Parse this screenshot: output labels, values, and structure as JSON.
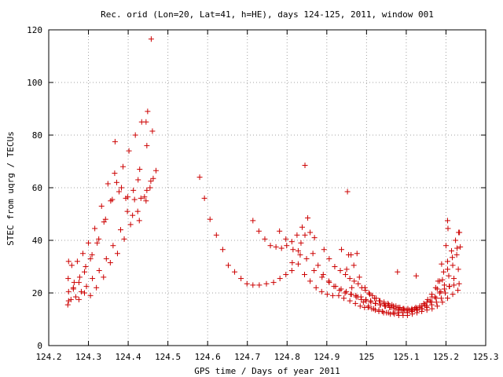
{
  "chart_data": {
    "type": "scatter",
    "title": "Rec. orid (Lon=20, Lat=41, h=HE), days 124-125, 2011, window 001",
    "xlabel": "GPS time / Days of year 2011",
    "ylabel": "STEC from uqrg / TECUs",
    "xlim": [
      124.2,
      125.3
    ],
    "ylim": [
      0,
      120
    ],
    "xticks": [
      "124.2",
      "124.3",
      "124.4",
      "124.5",
      "124.6",
      "124.7",
      "124.8",
      "124.9",
      "125",
      "125.1",
      "125.2",
      "125.3"
    ],
    "xtick_values": [
      124.2,
      124.3,
      124.4,
      124.5,
      124.6,
      124.7,
      124.8,
      124.9,
      125.0,
      125.1,
      125.2,
      125.3
    ],
    "yticks": [
      "0",
      "20",
      "40",
      "60",
      "80",
      "100",
      "120"
    ],
    "ytick_values": [
      0,
      20,
      40,
      60,
      80,
      100,
      120
    ],
    "grid": true,
    "marker": "+",
    "colors": {
      "points": "#cc0000",
      "grid": "#a0a0a0",
      "axis": "#000000"
    },
    "series": [
      {
        "x": [
          124.248,
          124.256,
          124.268,
          124.282,
          124.295,
          124.31,
          124.327,
          124.345,
          124.362,
          124.381,
          124.398,
          124.413,
          124.429,
          124.447,
          124.461,
          124.25,
          124.262,
          124.276,
          124.29,
          124.305,
          124.322,
          124.339,
          124.356,
          124.371,
          124.387,
          124.402,
          124.418,
          124.434,
          124.449,
          124.249,
          124.258,
          124.272,
          124.286,
          124.3,
          124.316,
          124.333,
          124.349,
          124.366,
          124.383,
          124.399,
          124.416,
          124.432,
          124.447,
          124.463,
          124.47,
          124.25,
          124.264,
          124.278,
          124.293,
          124.309,
          124.326,
          124.343,
          124.36,
          124.377,
          124.394,
          124.411,
          124.428,
          124.445,
          124.25,
          124.262,
          124.276,
          124.29,
          124.305,
          124.32,
          124.338,
          124.355,
          124.373,
          124.39,
          124.406,
          124.424,
          124.441,
          124.457,
          124.367,
          124.425,
          124.445,
          124.455,
          124.458,
          124.58,
          124.592,
          124.606,
          124.622,
          124.638,
          124.652,
          124.668,
          124.684,
          124.699,
          124.714,
          124.73,
          124.748,
          124.766,
          124.782,
          124.797,
          124.812,
          124.828,
          124.844,
          124.858,
          124.873,
          124.887,
          124.901,
          124.915,
          124.93,
          124.943,
          124.958,
          124.972,
          124.984,
          124.995,
          125.004,
          125.013,
          125.022,
          125.031,
          125.04,
          125.05,
          125.06,
          125.07,
          125.081,
          125.092,
          125.103,
          125.115,
          125.127,
          125.139,
          125.152,
          125.165,
          125.178,
          125.191,
          125.204,
          125.217,
          125.23,
          124.714,
          124.729,
          124.744,
          124.758,
          124.772,
          124.786,
          124.799,
          124.812,
          124.825,
          124.838,
          124.852,
          124.865,
          124.878,
          124.891,
          124.905,
          124.918,
          124.932,
          124.946,
          124.96,
          124.973,
          124.986,
          124.998,
          125.01,
          125.022,
          125.034,
          125.046,
          125.058,
          125.07,
          125.082,
          125.095,
          125.108,
          125.121,
          125.134,
          125.147,
          125.16,
          125.172,
          125.184,
          125.196,
          125.208,
          125.22,
          125.233,
          124.781,
          124.797,
          124.815,
          124.833,
          124.849,
          124.868,
          124.888,
          124.906,
          124.922,
          124.936,
          124.949,
          124.962,
          124.974,
          124.987,
          124.999,
          125.011,
          125.023,
          125.035,
          125.048,
          125.061,
          125.074,
          125.087,
          125.1,
          125.113,
          125.126,
          125.139,
          125.152,
          125.165,
          125.178,
          125.191,
          125.204,
          125.216,
          125.228,
          124.813,
          124.828,
          124.835,
          124.845,
          124.858,
          124.869,
          124.893,
          124.906,
          124.92,
          124.934,
          124.947,
          124.958,
          124.969,
          124.979,
          124.988,
          124.997,
          125.006,
          125.015,
          125.024,
          125.034,
          125.044,
          125.054,
          125.064,
          125.074,
          125.084,
          125.094,
          125.104,
          125.114,
          125.124,
          125.134,
          125.144,
          125.154,
          125.164,
          125.174,
          125.184,
          125.194,
          125.204,
          125.214,
          125.224,
          125.234,
          124.955,
          124.968,
          124.982,
          124.996,
          125.008,
          125.02,
          125.032,
          125.044,
          125.056,
          125.068,
          125.08,
          125.092,
          125.104,
          125.116,
          125.128,
          125.14,
          125.152,
          125.164,
          125.176,
          125.188,
          125.198,
          125.209,
          125.22,
          125.231,
          124.937,
          124.95,
          124.963,
          124.978,
          124.992,
          125.005,
          125.018,
          125.031,
          125.043,
          125.055,
          125.067,
          125.079,
          125.091,
          125.103,
          125.115,
          125.127,
          125.139,
          125.151,
          125.163,
          125.175,
          125.187,
          125.196,
          125.207,
          125.217,
          125.227,
          125.236,
          124.845,
          124.952,
          124.961,
          124.976,
          125.078,
          125.125,
          125.18,
          125.189,
          125.2,
          125.205,
          125.204,
          125.232
        ],
        "y": [
          15.5,
          17.5,
          18.5,
          20.5,
          22.5,
          25.5,
          28.5,
          33.0,
          38.0,
          44.0,
          51.0,
          59.0,
          67.0,
          76.0,
          81.5,
          17.0,
          21.5,
          24.0,
          28.0,
          33.0,
          39.0,
          47.0,
          55.0,
          62.0,
          68.0,
          74.0,
          80.0,
          85.0,
          89.0,
          25.5,
          30.5,
          32.0,
          35.0,
          39.0,
          44.5,
          53.0,
          61.5,
          65.5,
          60.0,
          56.5,
          55.5,
          56.0,
          59.0,
          63.5,
          66.5,
          20.5,
          24.0,
          26.0,
          30.0,
          34.5,
          40.5,
          48.0,
          55.5,
          58.5,
          56.0,
          49.5,
          47.5,
          55.0,
          32.0,
          22.0,
          17.5,
          20.0,
          19.0,
          22.0,
          26.0,
          31.5,
          35.0,
          40.5,
          46.0,
          51.0,
          56.5,
          62.5,
          77.5,
          63.0,
          85.0,
          60.0,
          116.5,
          64.0,
          56.0,
          48.0,
          42.0,
          36.5,
          30.5,
          28.0,
          25.5,
          23.5,
          23.0,
          23.0,
          23.5,
          24.0,
          25.5,
          27.0,
          28.5,
          31.0,
          27.0,
          24.5,
          22.0,
          20.5,
          19.5,
          19.0,
          19.0,
          18.0,
          17.0,
          16.0,
          15.0,
          14.5,
          14.5,
          14.0,
          13.5,
          13.5,
          13.0,
          12.5,
          12.0,
          12.0,
          11.5,
          11.5,
          11.5,
          12.0,
          12.5,
          13.0,
          13.5,
          14.0,
          15.0,
          16.5,
          18.0,
          19.5,
          21.0,
          47.5,
          43.5,
          40.5,
          38.0,
          37.5,
          37.0,
          38.0,
          39.5,
          42.0,
          45.0,
          48.5,
          35.0,
          30.5,
          27.0,
          24.5,
          22.5,
          21.0,
          20.0,
          19.5,
          19.0,
          18.5,
          17.5,
          17.0,
          16.0,
          15.5,
          15.0,
          14.5,
          14.0,
          13.5,
          13.5,
          13.5,
          14.0,
          14.5,
          15.5,
          17.0,
          18.5,
          20.0,
          21.5,
          22.5,
          23.0,
          23.5,
          43.5,
          40.5,
          36.5,
          34.5,
          33.0,
          28.5,
          26.0,
          24.0,
          22.5,
          21.5,
          20.5,
          19.5,
          18.5,
          17.5,
          17.0,
          16.5,
          16.0,
          15.5,
          15.0,
          14.5,
          14.0,
          13.5,
          13.5,
          13.5,
          14.0,
          15.0,
          16.5,
          18.5,
          21.5,
          25.0,
          29.0,
          33.5,
          37.0,
          31.5,
          36.0,
          39.0,
          42.0,
          43.0,
          41.0,
          36.5,
          33.0,
          30.0,
          28.5,
          27.0,
          25.5,
          24.5,
          23.5,
          22.0,
          21.0,
          20.0,
          19.0,
          18.0,
          17.0,
          16.5,
          16.0,
          15.5,
          15.0,
          14.5,
          14.0,
          14.0,
          14.0,
          14.5,
          15.0,
          16.0,
          17.5,
          19.5,
          22.0,
          24.5,
          28.0,
          32.0,
          36.0,
          40.0,
          43.0,
          34.5,
          30.5,
          26.0,
          22.0,
          19.5,
          18.0,
          17.0,
          16.0,
          15.5,
          15.0,
          14.5,
          14.0,
          13.5,
          13.5,
          13.5,
          14.0,
          14.5,
          15.5,
          16.5,
          18.0,
          20.0,
          22.5,
          25.5,
          29.0,
          36.5,
          29.0,
          22.0,
          18.5,
          16.5,
          15.0,
          14.0,
          13.0,
          12.5,
          12.5,
          12.5,
          12.5,
          12.5,
          12.5,
          13.0,
          13.5,
          14.0,
          15.0,
          16.5,
          18.0,
          20.5,
          23.0,
          26.5,
          30.5,
          34.5,
          37.5,
          68.5,
          58.5,
          34.5,
          35.0,
          28.0,
          26.5,
          24.5,
          31.0,
          38.0,
          44.5,
          47.5,
          43.0
        ]
      }
    ]
  }
}
